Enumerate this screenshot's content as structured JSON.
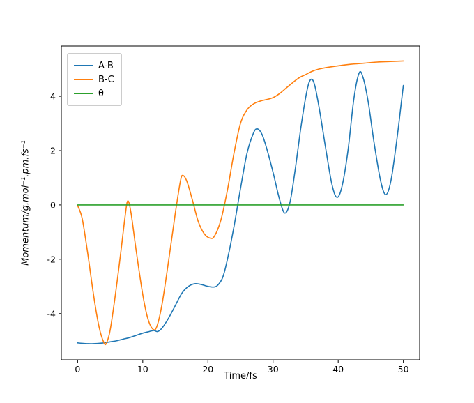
{
  "figure": {
    "background": "#ffffff",
    "xlabel": "Time/fs",
    "ylabel": "Momentum/g.mol⁻¹.pm.fs⁻¹"
  },
  "legend": {
    "entries": [
      {
        "label": "A-B",
        "color": "#1f77b4"
      },
      {
        "label": "B-C",
        "color": "#ff7f0e"
      },
      {
        "label": "θ",
        "color": "#2ca02c"
      }
    ]
  },
  "chart_data": {
    "type": "line",
    "title": "",
    "xlabel": "Time/fs",
    "ylabel": "Momentum/g.mol⁻¹.pm.fs⁻¹",
    "xlim": [
      -2.5,
      52.5
    ],
    "ylim": [
      -5.7,
      5.85
    ],
    "x_ticks": [
      0,
      10,
      20,
      30,
      40,
      50
    ],
    "y_ticks": [
      -4,
      -2,
      0,
      2,
      4
    ],
    "grid": false,
    "legend_position": "upper left",
    "series": [
      {
        "name": "A-B",
        "color": "#1f77b4",
        "points": [
          [
            0,
            -5.08
          ],
          [
            1,
            -5.1
          ],
          [
            2,
            -5.11
          ],
          [
            3,
            -5.1
          ],
          [
            4,
            -5.08
          ],
          [
            5,
            -5.04
          ],
          [
            6,
            -5.0
          ],
          [
            7,
            -4.94
          ],
          [
            8,
            -4.88
          ],
          [
            9,
            -4.8
          ],
          [
            10,
            -4.72
          ],
          [
            11,
            -4.66
          ],
          [
            11.7,
            -4.62
          ],
          [
            12.3,
            -4.66
          ],
          [
            13,
            -4.52
          ],
          [
            14,
            -4.15
          ],
          [
            15,
            -3.7
          ],
          [
            16,
            -3.25
          ],
          [
            17,
            -3.0
          ],
          [
            18,
            -2.9
          ],
          [
            19,
            -2.93
          ],
          [
            20,
            -3.0
          ],
          [
            21,
            -3.02
          ],
          [
            21.6,
            -2.93
          ],
          [
            22.3,
            -2.65
          ],
          [
            23,
            -2.0
          ],
          [
            24,
            -0.8
          ],
          [
            25,
            0.6
          ],
          [
            26,
            1.9
          ],
          [
            27,
            2.65
          ],
          [
            27.6,
            2.8
          ],
          [
            28.3,
            2.6
          ],
          [
            29,
            2.1
          ],
          [
            30,
            1.2
          ],
          [
            31,
            0.2
          ],
          [
            31.8,
            -0.3
          ],
          [
            32.6,
            0.1
          ],
          [
            33.4,
            1.3
          ],
          [
            34.3,
            2.9
          ],
          [
            35.2,
            4.2
          ],
          [
            35.8,
            4.62
          ],
          [
            36.4,
            4.4
          ],
          [
            37.2,
            3.4
          ],
          [
            38,
            2.2
          ],
          [
            39,
            0.8
          ],
          [
            39.8,
            0.28
          ],
          [
            40.6,
            0.7
          ],
          [
            41.5,
            2.0
          ],
          [
            42.4,
            3.9
          ],
          [
            43.2,
            4.85
          ],
          [
            43.8,
            4.7
          ],
          [
            44.6,
            3.8
          ],
          [
            45.5,
            2.3
          ],
          [
            46.5,
            0.9
          ],
          [
            47.3,
            0.38
          ],
          [
            48.1,
            0.9
          ],
          [
            49,
            2.4
          ],
          [
            49.7,
            3.8
          ],
          [
            50,
            4.4
          ]
        ]
      },
      {
        "name": "B-C",
        "color": "#ff7f0e",
        "points": [
          [
            0,
            -0.02
          ],
          [
            0.7,
            -0.5
          ],
          [
            1.5,
            -1.7
          ],
          [
            2.5,
            -3.4
          ],
          [
            3.3,
            -4.5
          ],
          [
            4.0,
            -5.05
          ],
          [
            4.4,
            -5.1
          ],
          [
            5.0,
            -4.6
          ],
          [
            5.8,
            -3.3
          ],
          [
            6.6,
            -1.8
          ],
          [
            7.3,
            -0.4
          ],
          [
            7.7,
            0.15
          ],
          [
            8.2,
            -0.3
          ],
          [
            9,
            -1.7
          ],
          [
            10,
            -3.3
          ],
          [
            10.8,
            -4.2
          ],
          [
            11.6,
            -4.58
          ],
          [
            12.2,
            -4.45
          ],
          [
            13,
            -3.6
          ],
          [
            14,
            -2.0
          ],
          [
            15,
            -0.3
          ],
          [
            15.8,
            0.9
          ],
          [
            16.2,
            1.08
          ],
          [
            16.8,
            0.85
          ],
          [
            17.6,
            0.2
          ],
          [
            18.5,
            -0.6
          ],
          [
            19.4,
            -1.05
          ],
          [
            20.3,
            -1.22
          ],
          [
            21,
            -1.15
          ],
          [
            22,
            -0.55
          ],
          [
            23,
            0.55
          ],
          [
            24,
            1.9
          ],
          [
            25,
            3.0
          ],
          [
            26,
            3.5
          ],
          [
            27,
            3.72
          ],
          [
            28,
            3.82
          ],
          [
            29,
            3.88
          ],
          [
            30,
            3.95
          ],
          [
            31,
            4.1
          ],
          [
            32,
            4.3
          ],
          [
            33,
            4.5
          ],
          [
            34,
            4.68
          ],
          [
            35,
            4.8
          ],
          [
            36,
            4.92
          ],
          [
            37,
            5.0
          ],
          [
            38,
            5.05
          ],
          [
            40,
            5.12
          ],
          [
            42,
            5.18
          ],
          [
            44,
            5.22
          ],
          [
            46,
            5.26
          ],
          [
            48,
            5.28
          ],
          [
            50,
            5.3
          ]
        ]
      },
      {
        "name": "θ",
        "color": "#2ca02c",
        "points": [
          [
            0,
            0
          ],
          [
            50,
            0
          ]
        ]
      }
    ]
  }
}
